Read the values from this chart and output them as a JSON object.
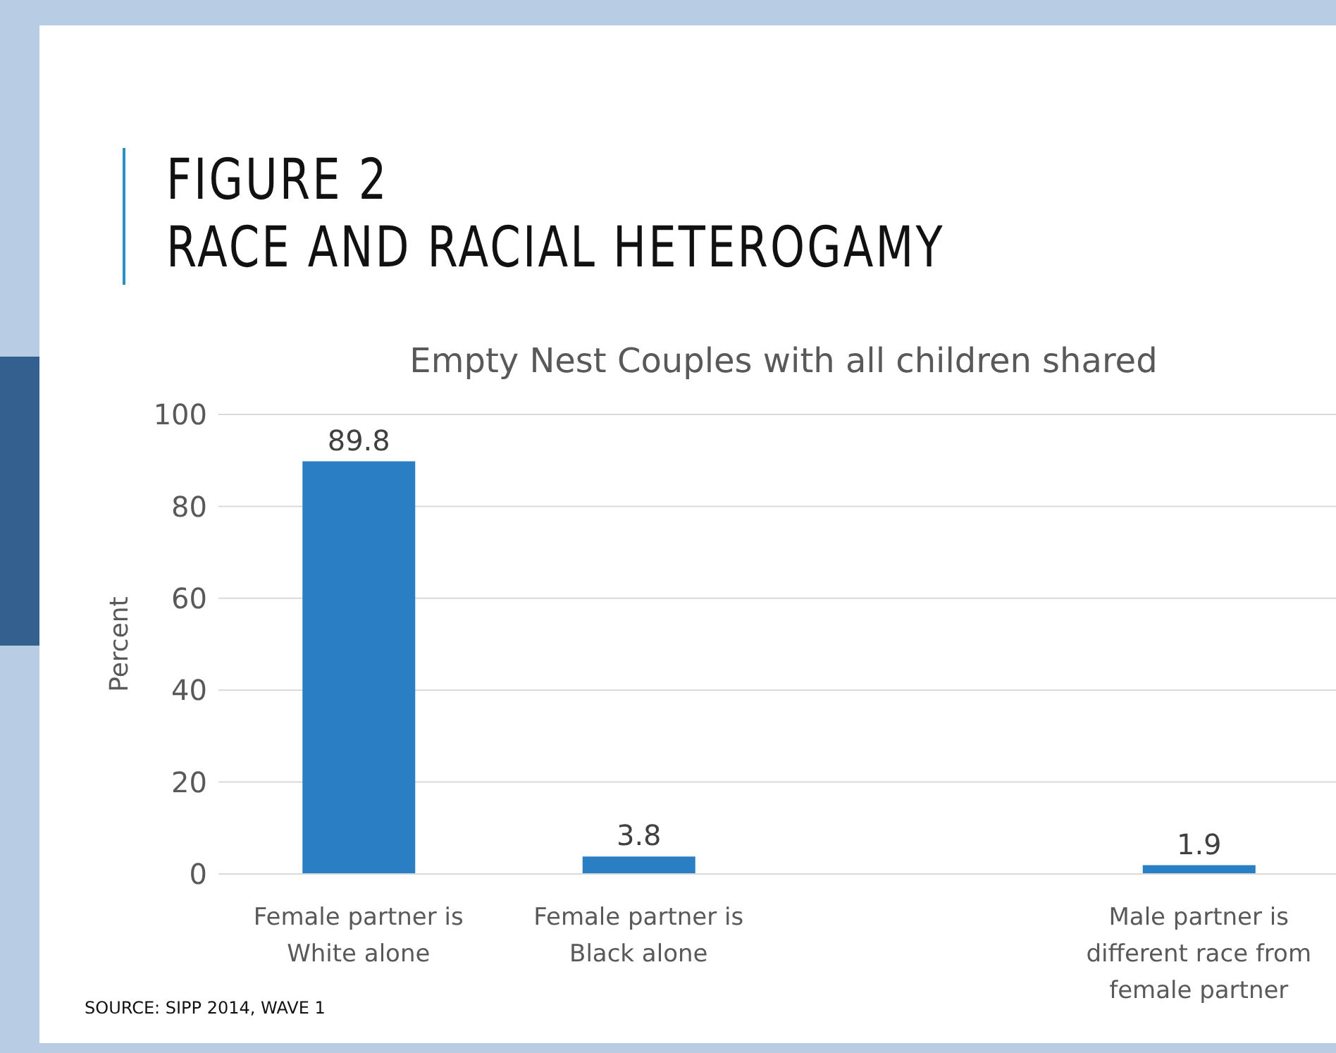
{
  "chart_data": {
    "type": "bar",
    "title": "FIGURE 2\nRACE AND RACIAL HETEROGAMY",
    "subtitle": "Empty Nest Couples with all children shared",
    "ylabel": "Percent",
    "categories": [
      "Female partner is White alone",
      "Female partner is Black alone",
      null,
      "Male partner is different race from female partner"
    ],
    "values": [
      89.8,
      3.8,
      null,
      1.9
    ],
    "color": "#2a7fc4",
    "ylim": [
      0,
      100
    ],
    "yticks": [
      0,
      20,
      40,
      60,
      80,
      100
    ],
    "grid": "y",
    "data_labels": true,
    "annotations": [
      "SOURCE: SIPP 2014, WAVE 1"
    ]
  }
}
